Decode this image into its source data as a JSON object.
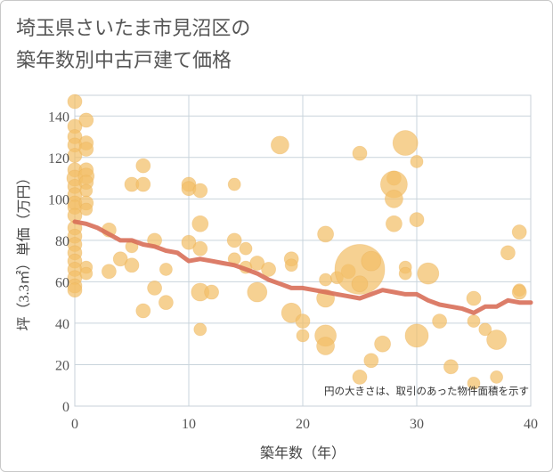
{
  "title_lines": [
    "埼玉県さいたま市見沼区の",
    "築年数別中古戸建て価格"
  ],
  "colors": {
    "bubble": "#f2bf68",
    "trend": "#d86f59",
    "grid": "#c9d4dc",
    "plot_border": "#c8d0d8"
  },
  "chart_data": {
    "type": "scatter",
    "xlabel": "築年数（年）",
    "ylabel": "坪（3.3㎡）単価（万円）",
    "xlim": [
      0,
      40
    ],
    "ylim": [
      0,
      150
    ],
    "x_ticks": [
      0,
      10,
      20,
      30,
      40
    ],
    "y_ticks": [
      0,
      20,
      40,
      60,
      80,
      100,
      120,
      140
    ],
    "grid": true,
    "note": "円の大きさは、取引のあった物件面積を示す",
    "points": [
      {
        "x": 0,
        "y": 147,
        "s": 8
      },
      {
        "x": 0,
        "y": 135,
        "s": 8
      },
      {
        "x": 0,
        "y": 130,
        "s": 8
      },
      {
        "x": 0,
        "y": 126,
        "s": 8
      },
      {
        "x": 0,
        "y": 121,
        "s": 8
      },
      {
        "x": 0,
        "y": 114,
        "s": 8
      },
      {
        "x": 0,
        "y": 110,
        "s": 9
      },
      {
        "x": 0,
        "y": 106,
        "s": 8
      },
      {
        "x": 0,
        "y": 102,
        "s": 8
      },
      {
        "x": 0,
        "y": 98,
        "s": 8
      },
      {
        "x": 0,
        "y": 96,
        "s": 8
      },
      {
        "x": 0,
        "y": 92,
        "s": 8
      },
      {
        "x": 0,
        "y": 86,
        "s": 8
      },
      {
        "x": 0,
        "y": 82,
        "s": 8
      },
      {
        "x": 0,
        "y": 78,
        "s": 8
      },
      {
        "x": 0,
        "y": 74,
        "s": 8
      },
      {
        "x": 0,
        "y": 70,
        "s": 8
      },
      {
        "x": 0,
        "y": 66,
        "s": 8
      },
      {
        "x": 0,
        "y": 62,
        "s": 8
      },
      {
        "x": 0,
        "y": 58,
        "s": 8
      },
      {
        "x": 0,
        "y": 56,
        "s": 8
      },
      {
        "x": 1,
        "y": 138,
        "s": 8
      },
      {
        "x": 1,
        "y": 127,
        "s": 8
      },
      {
        "x": 1,
        "y": 124,
        "s": 8
      },
      {
        "x": 1,
        "y": 114,
        "s": 8
      },
      {
        "x": 1,
        "y": 111,
        "s": 9
      },
      {
        "x": 1,
        "y": 108,
        "s": 8
      },
      {
        "x": 1,
        "y": 104,
        "s": 7
      },
      {
        "x": 1,
        "y": 98,
        "s": 8
      },
      {
        "x": 1,
        "y": 95,
        "s": 7
      },
      {
        "x": 1,
        "y": 67,
        "s": 7
      },
      {
        "x": 1,
        "y": 64,
        "s": 7
      },
      {
        "x": 3,
        "y": 85,
        "s": 8
      },
      {
        "x": 3,
        "y": 65,
        "s": 8
      },
      {
        "x": 4,
        "y": 71,
        "s": 8
      },
      {
        "x": 5,
        "y": 107,
        "s": 8
      },
      {
        "x": 5,
        "y": 77,
        "s": 7
      },
      {
        "x": 5,
        "y": 68,
        "s": 8
      },
      {
        "x": 6,
        "y": 116,
        "s": 8
      },
      {
        "x": 6,
        "y": 107,
        "s": 8
      },
      {
        "x": 6,
        "y": 46,
        "s": 8
      },
      {
        "x": 7,
        "y": 80,
        "s": 8
      },
      {
        "x": 7,
        "y": 57,
        "s": 8
      },
      {
        "x": 8,
        "y": 66,
        "s": 7
      },
      {
        "x": 8,
        "y": 50,
        "s": 8
      },
      {
        "x": 10,
        "y": 107,
        "s": 8
      },
      {
        "x": 10,
        "y": 105,
        "s": 8
      },
      {
        "x": 10,
        "y": 79,
        "s": 8
      },
      {
        "x": 11,
        "y": 104,
        "s": 8
      },
      {
        "x": 11,
        "y": 88,
        "s": 9
      },
      {
        "x": 11,
        "y": 76,
        "s": 8
      },
      {
        "x": 11,
        "y": 55,
        "s": 10
      },
      {
        "x": 11,
        "y": 37,
        "s": 7
      },
      {
        "x": 12,
        "y": 55,
        "s": 8
      },
      {
        "x": 14,
        "y": 107,
        "s": 7
      },
      {
        "x": 14,
        "y": 80,
        "s": 8
      },
      {
        "x": 14,
        "y": 71,
        "s": 7
      },
      {
        "x": 15,
        "y": 76,
        "s": 7
      },
      {
        "x": 15,
        "y": 67,
        "s": 7
      },
      {
        "x": 16,
        "y": 69,
        "s": 8
      },
      {
        "x": 16,
        "y": 55,
        "s": 11
      },
      {
        "x": 17,
        "y": 66,
        "s": 8
      },
      {
        "x": 18,
        "y": 126,
        "s": 10
      },
      {
        "x": 19,
        "y": 71,
        "s": 8
      },
      {
        "x": 19,
        "y": 68,
        "s": 7
      },
      {
        "x": 19,
        "y": 45,
        "s": 11
      },
      {
        "x": 20,
        "y": 41,
        "s": 8
      },
      {
        "x": 20,
        "y": 34,
        "s": 7
      },
      {
        "x": 22,
        "y": 83,
        "s": 9
      },
      {
        "x": 22,
        "y": 61,
        "s": 7
      },
      {
        "x": 22,
        "y": 52,
        "s": 10
      },
      {
        "x": 22,
        "y": 34,
        "s": 12
      },
      {
        "x": 22,
        "y": 29,
        "s": 10
      },
      {
        "x": 23,
        "y": 62,
        "s": 7
      },
      {
        "x": 24,
        "y": 65,
        "s": 8
      },
      {
        "x": 25,
        "y": 122,
        "s": 8
      },
      {
        "x": 25,
        "y": 66,
        "s": 28
      },
      {
        "x": 25,
        "y": 59,
        "s": 9
      },
      {
        "x": 25,
        "y": 14,
        "s": 8
      },
      {
        "x": 26,
        "y": 70,
        "s": 11
      },
      {
        "x": 26,
        "y": 22,
        "s": 8
      },
      {
        "x": 27,
        "y": 30,
        "s": 9
      },
      {
        "x": 28,
        "y": 110,
        "s": 8
      },
      {
        "x": 28,
        "y": 107,
        "s": 15
      },
      {
        "x": 28,
        "y": 100,
        "s": 10
      },
      {
        "x": 28,
        "y": 88,
        "s": 9
      },
      {
        "x": 29,
        "y": 127,
        "s": 14
      },
      {
        "x": 29,
        "y": 67,
        "s": 7
      },
      {
        "x": 29,
        "y": 64,
        "s": 7
      },
      {
        "x": 30,
        "y": 118,
        "s": 7
      },
      {
        "x": 30,
        "y": 90,
        "s": 8
      },
      {
        "x": 30,
        "y": 34,
        "s": 13
      },
      {
        "x": 31,
        "y": 64,
        "s": 12
      },
      {
        "x": 32,
        "y": 41,
        "s": 8
      },
      {
        "x": 33,
        "y": 19,
        "s": 8
      },
      {
        "x": 35,
        "y": 52,
        "s": 8
      },
      {
        "x": 35,
        "y": 41,
        "s": 7
      },
      {
        "x": 35,
        "y": 11,
        "s": 7
      },
      {
        "x": 36,
        "y": 37,
        "s": 7
      },
      {
        "x": 37,
        "y": 32,
        "s": 11
      },
      {
        "x": 37,
        "y": 14,
        "s": 7
      },
      {
        "x": 38,
        "y": 74,
        "s": 8
      },
      {
        "x": 39,
        "y": 84,
        "s": 8
      },
      {
        "x": 39,
        "y": 56,
        "s": 7
      },
      {
        "x": 39,
        "y": 55,
        "s": 8
      }
    ],
    "trend": {
      "x": [
        0,
        1,
        2,
        3,
        4,
        5,
        6,
        7,
        8,
        9,
        10,
        11,
        12,
        13,
        14,
        15,
        16,
        17,
        18,
        19,
        20,
        21,
        22,
        23,
        24,
        25,
        26,
        27,
        28,
        29,
        30,
        31,
        32,
        33,
        34,
        35,
        36,
        37,
        38,
        39,
        40
      ],
      "y": [
        89,
        88,
        86,
        83,
        80,
        80,
        78,
        77,
        75,
        74,
        70,
        71,
        70,
        69,
        68,
        66,
        64,
        61,
        59,
        57,
        57,
        56,
        55,
        54,
        53,
        52,
        54,
        56,
        55,
        54,
        54,
        51,
        49,
        48,
        47,
        45,
        48,
        48,
        51,
        50,
        50
      ]
    }
  }
}
